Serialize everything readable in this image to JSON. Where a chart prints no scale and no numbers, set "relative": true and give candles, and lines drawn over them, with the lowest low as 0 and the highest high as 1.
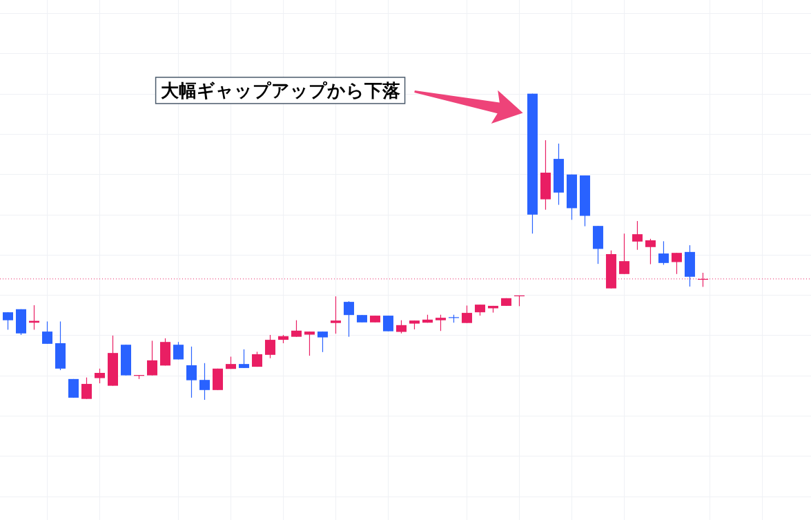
{
  "chart_data": {
    "type": "candlestick",
    "relative": true,
    "grid": true,
    "categories": [
      null,
      null,
      null,
      null,
      null,
      null,
      null,
      null,
      null,
      null,
      null,
      null,
      null,
      null,
      null,
      null,
      null,
      null,
      null,
      null,
      null,
      null,
      null,
      null,
      null,
      null,
      null,
      null,
      null,
      null,
      null,
      null,
      null,
      null,
      null,
      null,
      null,
      null,
      null,
      null,
      null,
      null,
      null,
      null,
      null,
      null,
      null,
      null,
      null,
      null,
      null,
      null,
      null,
      null
    ],
    "ohlc": [
      [
        0.286,
        0.286,
        0.229,
        0.26
      ],
      [
        0.296,
        0.296,
        0.212,
        0.217
      ],
      [
        0.252,
        0.309,
        0.229,
        0.258
      ],
      [
        0.223,
        0.256,
        0.183,
        0.183
      ],
      [
        0.185,
        0.256,
        0.097,
        0.102
      ],
      [
        0.068,
        0.068,
        0.007,
        0.007
      ],
      [
        0.003,
        0.073,
        0.003,
        0.052
      ],
      [
        0.071,
        0.102,
        0.054,
        0.088
      ],
      [
        0.046,
        0.21,
        0.046,
        0.153
      ],
      [
        0.18,
        0.18,
        0.08,
        0.08
      ],
      [
        0.079,
        0.081,
        0.068,
        0.081
      ],
      [
        0.08,
        0.193,
        0.08,
        0.129
      ],
      [
        0.112,
        0.201,
        0.112,
        0.189
      ],
      [
        0.18,
        0.189,
        0.132,
        0.132
      ],
      [
        0.113,
        0.174,
        0.007,
        0.064
      ],
      [
        0.065,
        0.12,
        0,
        0.032
      ],
      [
        0.032,
        0.102,
        0.032,
        0.102
      ],
      [
        0.101,
        0.141,
        0.101,
        0.117
      ],
      [
        0.117,
        0.165,
        0.104,
        0.104
      ],
      [
        0.108,
        0.157,
        0.108,
        0.149
      ],
      [
        0.147,
        0.212,
        0.136,
        0.196
      ],
      [
        0.196,
        0.212,
        0.185,
        0.208
      ],
      [
        0.206,
        0.26,
        0.206,
        0.226
      ],
      [
        0.213,
        0.223,
        0.144,
        0.223
      ],
      [
        0.223,
        0.223,
        0.156,
        0.204
      ],
      [
        0.251,
        0.338,
        0.216,
        0.259
      ],
      [
        0.32,
        0.322,
        0.206,
        0.277
      ],
      [
        0.277,
        0.277,
        0.253,
        0.253
      ],
      [
        0.253,
        0.275,
        0.253,
        0.275
      ],
      [
        0.275,
        0.275,
        0.224,
        0.224
      ],
      [
        0.222,
        0.26,
        0.217,
        0.244
      ],
      [
        0.249,
        0.259,
        0.23,
        0.259
      ],
      [
        0.252,
        0.278,
        0.252,
        0.262
      ],
      [
        0.26,
        0.278,
        0.225,
        0.268
      ],
      [
        0.27,
        0.278,
        0.252,
        0.268
      ],
      [
        0.251,
        0.308,
        0.251,
        0.284
      ],
      [
        0.286,
        0.311,
        0.275,
        0.311
      ],
      [
        0.299,
        0.307,
        0.285,
        0.307
      ],
      [
        0.307,
        0.332,
        0.307,
        0.332
      ],
      [
        0.339,
        0.341,
        0.306,
        0.341
      ],
      [
        1,
        1,
        0.543,
        0.605
      ],
      [
        0.655,
        0.848,
        0.621,
        0.742
      ],
      [
        0.787,
        0.837,
        0.637,
        0.677
      ],
      [
        0.736,
        0.736,
        0.588,
        0.626
      ],
      [
        0.733,
        0.733,
        0.567,
        0.601
      ],
      [
        0.568,
        0.568,
        0.444,
        0.493
      ],
      [
        0.364,
        0.488,
        0.364,
        0.476
      ],
      [
        0.411,
        0.543,
        0.411,
        0.453
      ],
      [
        0.517,
        0.584,
        0.49,
        0.541
      ],
      [
        0.499,
        0.526,
        0.443,
        0.521
      ],
      [
        0.478,
        0.518,
        0.441,
        0.447
      ],
      [
        0.45,
        0.48,
        0.411,
        0.48
      ],
      [
        0.483,
        0.505,
        0.37,
        0.402
      ],
      [
        0.393,
        0.415,
        0.369,
        0.395
      ]
    ],
    "colors": [
      "#2962ff",
      "#2962ff",
      "#e91e63",
      "#2962ff",
      "#2962ff",
      "#2962ff",
      "#e91e63",
      "#e91e63",
      "#e91e63",
      "#2962ff",
      "#e91e63",
      "#e91e63",
      "#e91e63",
      "#2962ff",
      "#2962ff",
      "#2962ff",
      "#e91e63",
      "#e91e63",
      "#2962ff",
      "#e91e63",
      "#e91e63",
      "#e91e63",
      "#e91e63",
      "#e91e63",
      "#2962ff",
      "#e91e63",
      "#2962ff",
      "#2962ff",
      "#e91e63",
      "#2962ff",
      "#e91e63",
      "#e91e63",
      "#e91e63",
      "#e91e63",
      "#2962ff",
      "#e91e63",
      "#e91e63",
      "#e91e63",
      "#e91e63",
      "#e91e63",
      "#2962ff",
      "#e91e63",
      "#2962ff",
      "#2962ff",
      "#2962ff",
      "#2962ff",
      "#e91e63",
      "#e91e63",
      "#e91e63",
      "#e91e63",
      "#2962ff",
      "#e91e63",
      "#2962ff",
      "#e91e63"
    ],
    "ref_lines": [
      {
        "axis": "y",
        "value": 0.395,
        "color": "#e91e63",
        "line_style": "dotted"
      }
    ],
    "annotations": [
      "大幅ギャップアップから下落"
    ]
  }
}
